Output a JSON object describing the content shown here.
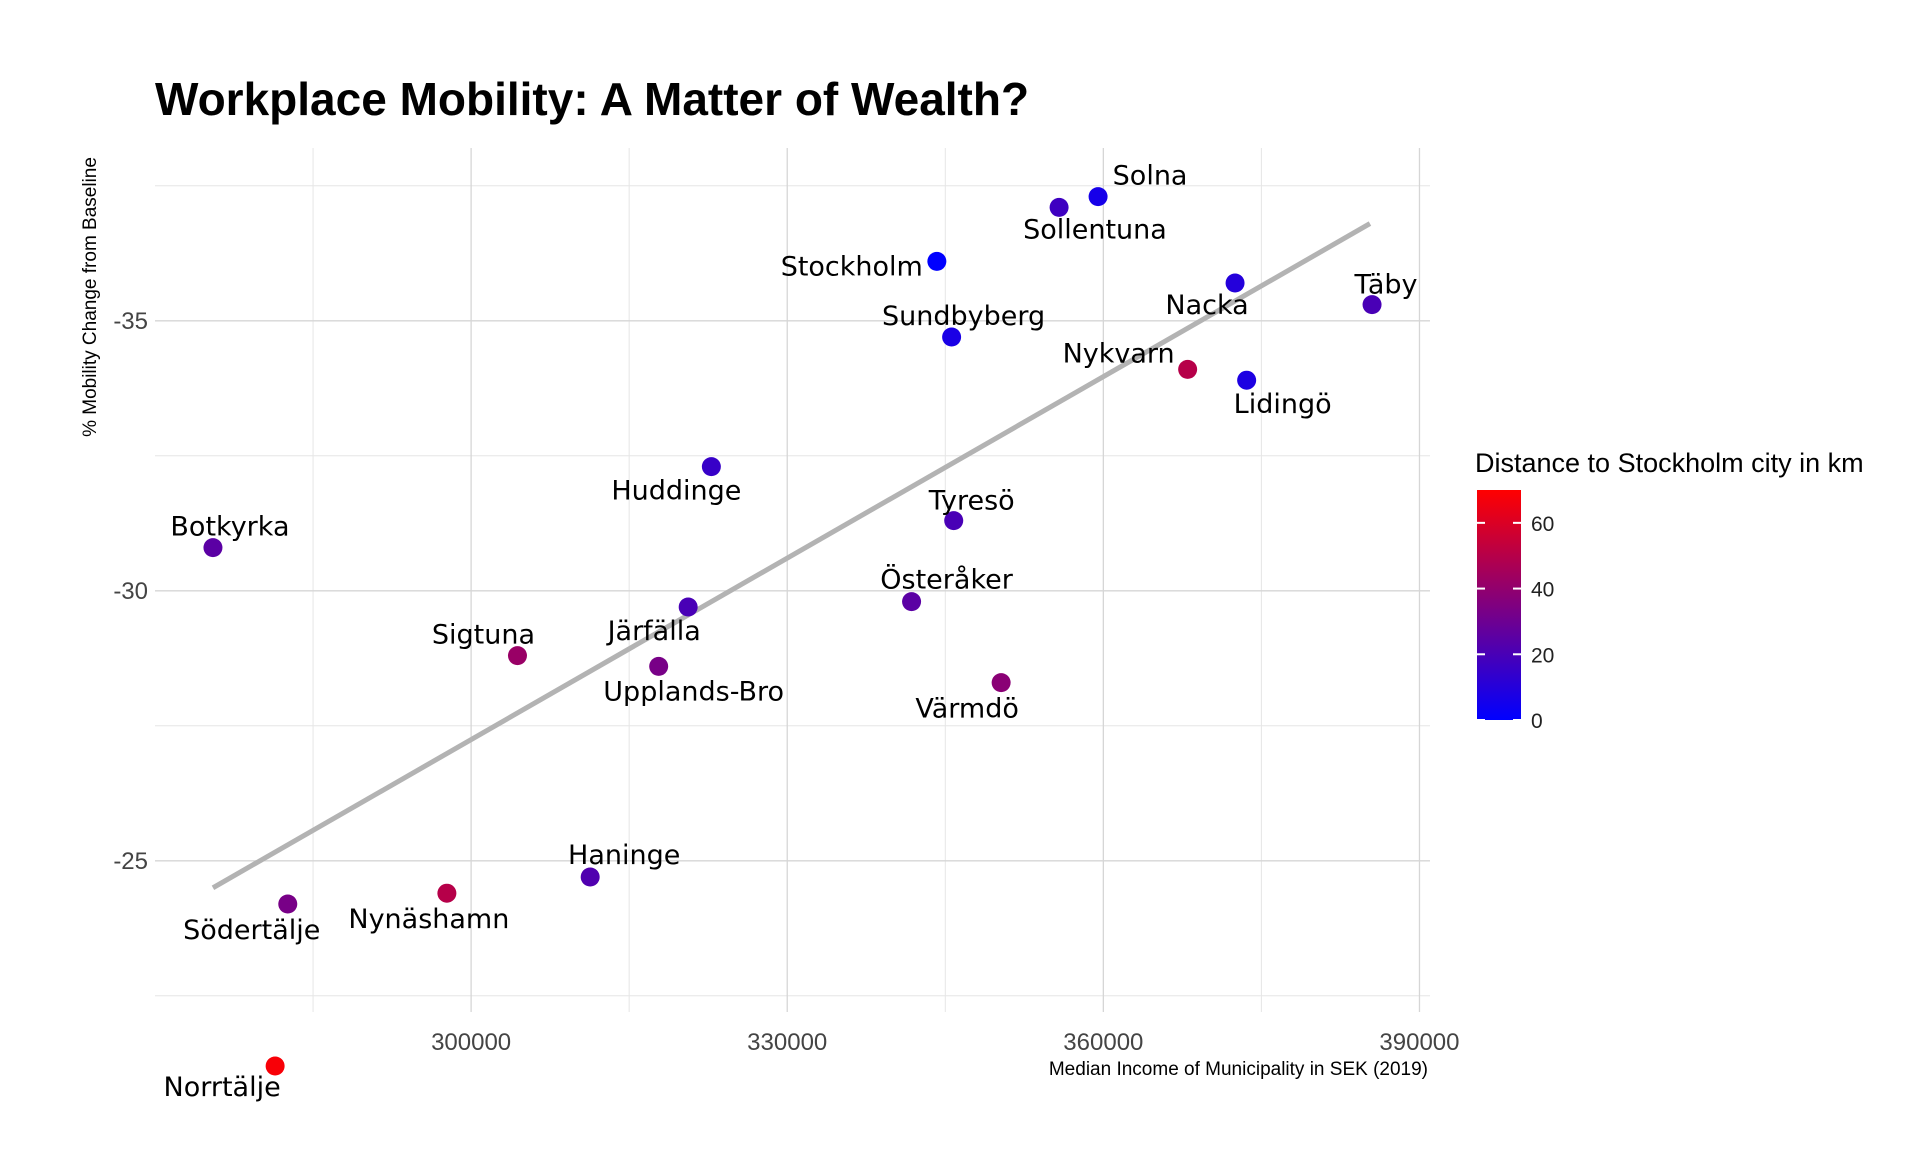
{
  "chart_data": {
    "type": "scatter",
    "title": "Workplace Mobility: A Matter of Wealth?",
    "xlabel": "Median Income of Municipality in SEK (2019)",
    "ylabel": "% Mobility Change from Baseline",
    "xlim": [
      270000,
      391000
    ],
    "ylim": [
      -22.2,
      -38.2
    ],
    "x_ticks": [
      300000,
      330000,
      360000,
      390000
    ],
    "x_tick_labels": [
      "300000",
      "330000",
      "360000",
      "390000"
    ],
    "y_ticks": [
      -35,
      -30,
      -25
    ],
    "y_tick_labels": [
      "-35",
      "-30",
      "-25"
    ],
    "grid": true,
    "trend_line": {
      "x": [
        275500,
        385300
      ],
      "y": [
        -24.5,
        -36.8
      ],
      "color": "#b3b3b3"
    },
    "color_scale": {
      "title": "Distance to Stockholm city in km",
      "min": 0,
      "max": 70,
      "low_color": "#0000ff",
      "high_color": "#ff0000",
      "ticks": [
        0,
        20,
        40,
        60
      ],
      "tick_labels": [
        "0",
        "20",
        "40",
        "60"
      ],
      "placement": "right"
    },
    "points": [
      {
        "name": "Solna",
        "x": 359500,
        "y": -37.3,
        "distance": 6
      },
      {
        "name": "Sollentuna",
        "x": 355800,
        "y": -37.1,
        "distance": 17
      },
      {
        "name": "Stockholm",
        "x": 344200,
        "y": -36.1,
        "distance": 0
      },
      {
        "name": "Täby",
        "x": 385500,
        "y": -35.3,
        "distance": 20
      },
      {
        "name": "Nacka",
        "x": 372500,
        "y": -35.7,
        "distance": 10
      },
      {
        "name": "Sundbyberg",
        "x": 345600,
        "y": -34.7,
        "distance": 7
      },
      {
        "name": "Nykvarn",
        "x": 368000,
        "y": -34.1,
        "distance": 50
      },
      {
        "name": "Lidingö",
        "x": 373600,
        "y": -33.9,
        "distance": 8
      },
      {
        "name": "Huddinge",
        "x": 322800,
        "y": -32.3,
        "distance": 15
      },
      {
        "name": "Tyresö",
        "x": 345800,
        "y": -31.3,
        "distance": 20
      },
      {
        "name": "Botkyrka",
        "x": 275500,
        "y": -30.8,
        "distance": 25
      },
      {
        "name": "Österåker",
        "x": 341800,
        "y": -29.8,
        "distance": 25
      },
      {
        "name": "Järfälla",
        "x": 320600,
        "y": -29.7,
        "distance": 20
      },
      {
        "name": "Sigtuna",
        "x": 304400,
        "y": -28.8,
        "distance": 42
      },
      {
        "name": "Upplands-Bro",
        "x": 317800,
        "y": -28.6,
        "distance": 33
      },
      {
        "name": "Värmdö",
        "x": 350300,
        "y": -28.3,
        "distance": 38
      },
      {
        "name": "Haninge",
        "x": 311300,
        "y": -24.7,
        "distance": 22
      },
      {
        "name": "Nynäshamn",
        "x": 297700,
        "y": -24.4,
        "distance": 50
      },
      {
        "name": "Södertälje",
        "x": 282600,
        "y": -24.2,
        "distance": 33
      },
      {
        "name": "Norrtälje",
        "x": 281400,
        "y": -21.2,
        "distance": 68
      }
    ]
  }
}
